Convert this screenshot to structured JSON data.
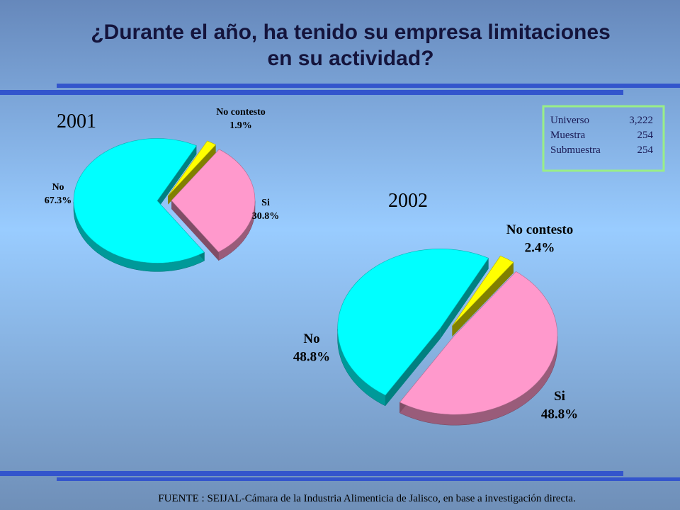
{
  "title_line1": "¿Durante el año, ha tenido su empresa limitaciones",
  "title_line2": "en su actividad?",
  "sample_box": [
    [
      "Universo",
      "3,222"
    ],
    [
      "Muestra",
      "254"
    ],
    [
      "Submuestra",
      "254"
    ]
  ],
  "footer": "FUENTE : SEIJAL-Cámara de la Industria Alimenticia de Jalisco,  en base a investigación directa.",
  "chart_data": [
    {
      "type": "pie",
      "title": "2001",
      "categories": [
        "No contesto",
        "Si",
        "No"
      ],
      "values": [
        1.9,
        30.8,
        67.3
      ],
      "value_labels": [
        "1.9%",
        "30.8%",
        "67.3%"
      ],
      "colors": [
        "#ffff00",
        "#ff99cc",
        "#00ffff"
      ]
    },
    {
      "type": "pie",
      "title": "2002",
      "categories": [
        "No contesto",
        "Si",
        "No"
      ],
      "values": [
        2.4,
        48.8,
        48.8
      ],
      "value_labels": [
        "2.4%",
        "48.8%",
        "48.8%"
      ],
      "colors": [
        "#ffff00",
        "#ff99cc",
        "#00ffff"
      ]
    }
  ]
}
